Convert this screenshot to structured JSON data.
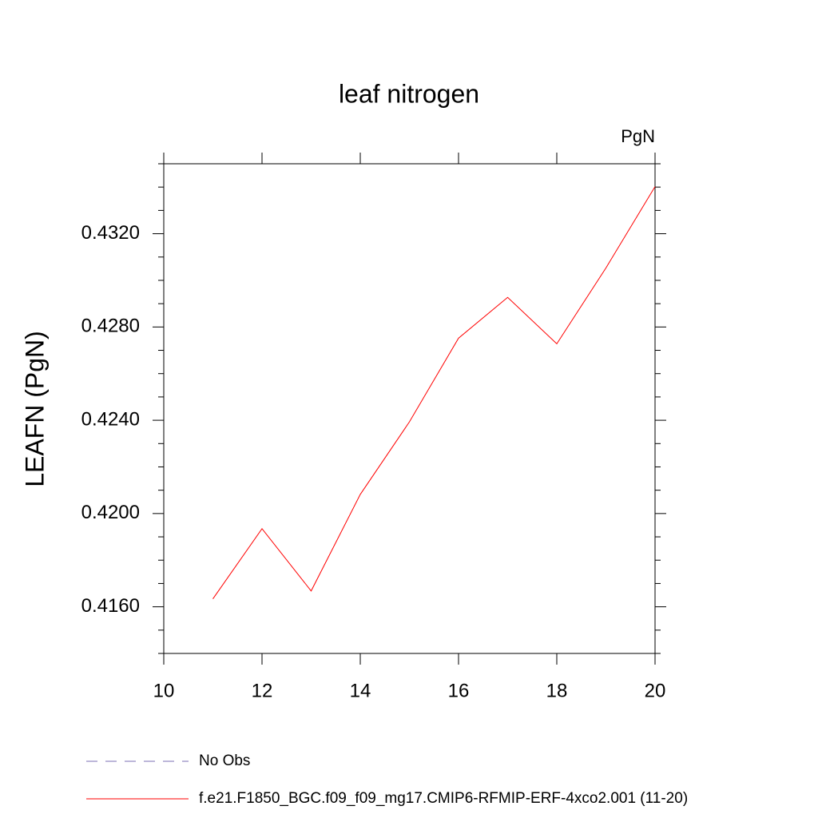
{
  "chart_data": {
    "type": "line",
    "title": "leaf nitrogen",
    "units_label": "PgN",
    "y_label": "LEAFN  (PgN)",
    "x": [
      11,
      12,
      13,
      14,
      15,
      16,
      17,
      18,
      19,
      20
    ],
    "series": [
      {
        "name": "No Obs",
        "color": "#7b6fb3",
        "dash": true,
        "values": [
          null,
          null,
          null,
          null,
          null,
          null,
          null,
          null,
          null,
          null
        ]
      },
      {
        "name": "f.e21.F1850_BGC.f09_f09_mg17.CMIP6-RFMIP-ERF-4xco2.001 (11-20)",
        "color": "#ff0000",
        "dash": false,
        "values": [
          0.41634,
          0.41935,
          0.41668,
          0.42082,
          0.42393,
          0.42752,
          0.42927,
          0.42728,
          0.43053,
          0.43402
        ]
      }
    ],
    "xlim": [
      10,
      20
    ],
    "xticks": [
      10,
      12,
      14,
      16,
      18,
      20
    ],
    "ylim": [
      0.414,
      0.435
    ],
    "yticks": [
      {
        "value": 0.416,
        "label": "0.4160"
      },
      {
        "value": 0.42,
        "label": "0.4200"
      },
      {
        "value": 0.424,
        "label": "0.4240"
      },
      {
        "value": 0.428,
        "label": "0.4280"
      },
      {
        "value": 0.432,
        "label": "0.4320"
      }
    ],
    "yminorticks": [
      0.414,
      0.415,
      0.417,
      0.418,
      0.419,
      0.421,
      0.422,
      0.423,
      0.425,
      0.426,
      0.427,
      0.429,
      0.43,
      0.431,
      0.433,
      0.434,
      0.435
    ],
    "legend": "bottom"
  }
}
